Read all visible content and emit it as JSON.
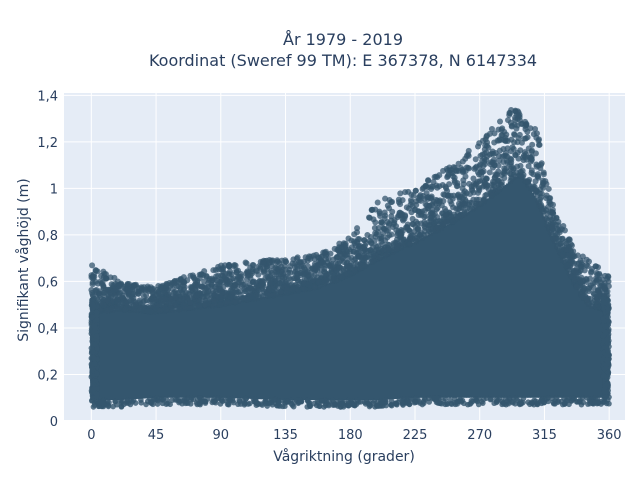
{
  "chart_data": {
    "type": "scatter",
    "title": [
      "År 1979 - 2019",
      "Koordinat (Sweref 99 TM): E 367378, N 6147334"
    ],
    "xlabel": "Vågriktning (grader)",
    "ylabel": "Signifikant våghöjd (m)",
    "xlim": [
      -19,
      371
    ],
    "ylim": [
      0,
      1.41
    ],
    "xticks": [
      0,
      45,
      90,
      135,
      180,
      225,
      270,
      315,
      360
    ],
    "xtick_labels": [
      "0",
      "45",
      "90",
      "135",
      "180",
      "225",
      "270",
      "315",
      "360"
    ],
    "yticks": [
      0,
      0.2,
      0.4,
      0.6,
      0.8,
      1,
      1.2,
      1.4
    ],
    "ytick_labels": [
      "0",
      "0,2",
      "0,4",
      "0,6",
      "0,8",
      "1",
      "1,2",
      "1,4"
    ],
    "grid": true,
    "marker_color": "#34566e",
    "plot_background": "#e5ecf6",
    "envelope": {
      "direction": [
        0,
        20,
        45,
        90,
        135,
        160,
        180,
        200,
        225,
        250,
        270,
        285,
        295,
        300,
        310,
        320,
        335,
        345,
        360
      ],
      "lower": [
        0.09,
        0.09,
        0.1,
        0.1,
        0.09,
        0.09,
        0.09,
        0.09,
        0.1,
        0.1,
        0.1,
        0.1,
        0.1,
        0.1,
        0.1,
        0.1,
        0.1,
        0.1,
        0.1
      ],
      "dense_upper": [
        0.47,
        0.48,
        0.47,
        0.5,
        0.55,
        0.58,
        0.63,
        0.7,
        0.77,
        0.85,
        0.93,
        1.0,
        1.05,
        1.05,
        0.95,
        0.8,
        0.6,
        0.5,
        0.47
      ],
      "max": [
        0.68,
        0.6,
        0.58,
        0.67,
        0.7,
        0.72,
        0.8,
        0.95,
        1.0,
        1.1,
        1.2,
        1.32,
        1.35,
        1.3,
        1.25,
        0.95,
        0.75,
        0.7,
        0.62
      ]
    }
  }
}
